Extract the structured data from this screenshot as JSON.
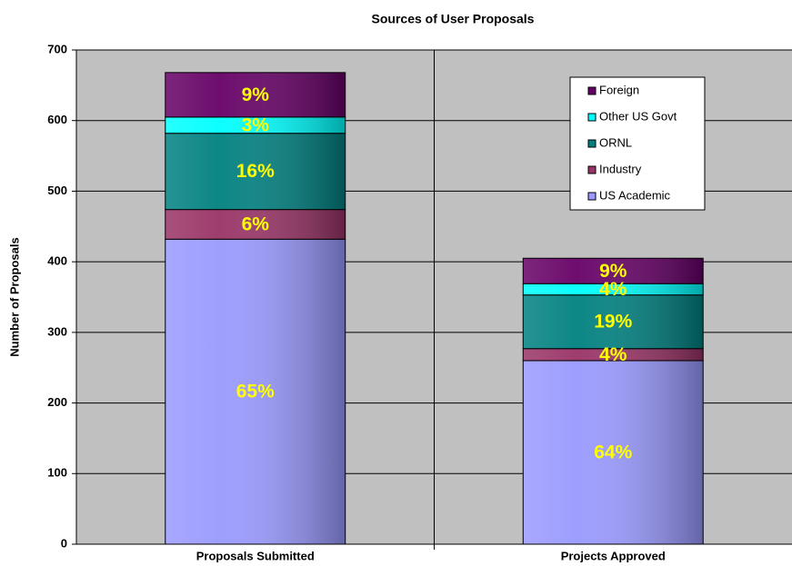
{
  "chart_data": {
    "type": "stacked_bar",
    "title": "Sources of User Proposals",
    "y_label": "Number of Proposals",
    "categories": [
      "Proposals Submitted",
      "Projects Approved"
    ],
    "series": [
      {
        "name": "US Academic",
        "color": "#9999ff",
        "values": [
          432,
          260
        ],
        "percent_labels": [
          "65%",
          "64%"
        ]
      },
      {
        "name": "Industry",
        "color": "#993366",
        "values": [
          42,
          17
        ],
        "percent_labels": [
          "6%",
          "4%"
        ]
      },
      {
        "name": "ORNL",
        "color": "#008080",
        "values": [
          108,
          76
        ],
        "percent_labels": [
          "16%",
          "19%"
        ]
      },
      {
        "name": "Other US Govt",
        "color": "#00ffff",
        "values": [
          23,
          16
        ],
        "percent_labels": [
          "3%",
          "4%"
        ]
      },
      {
        "name": "Foreign",
        "color": "#660066",
        "values": [
          63,
          36
        ],
        "percent_labels": [
          "9%",
          "9%"
        ]
      }
    ],
    "ylim": [
      0,
      700
    ],
    "yticks": [
      0,
      100,
      200,
      300,
      400,
      500,
      600,
      700
    ],
    "grid": true,
    "plot_background": "#c0c0c0",
    "legend": "upper right"
  }
}
